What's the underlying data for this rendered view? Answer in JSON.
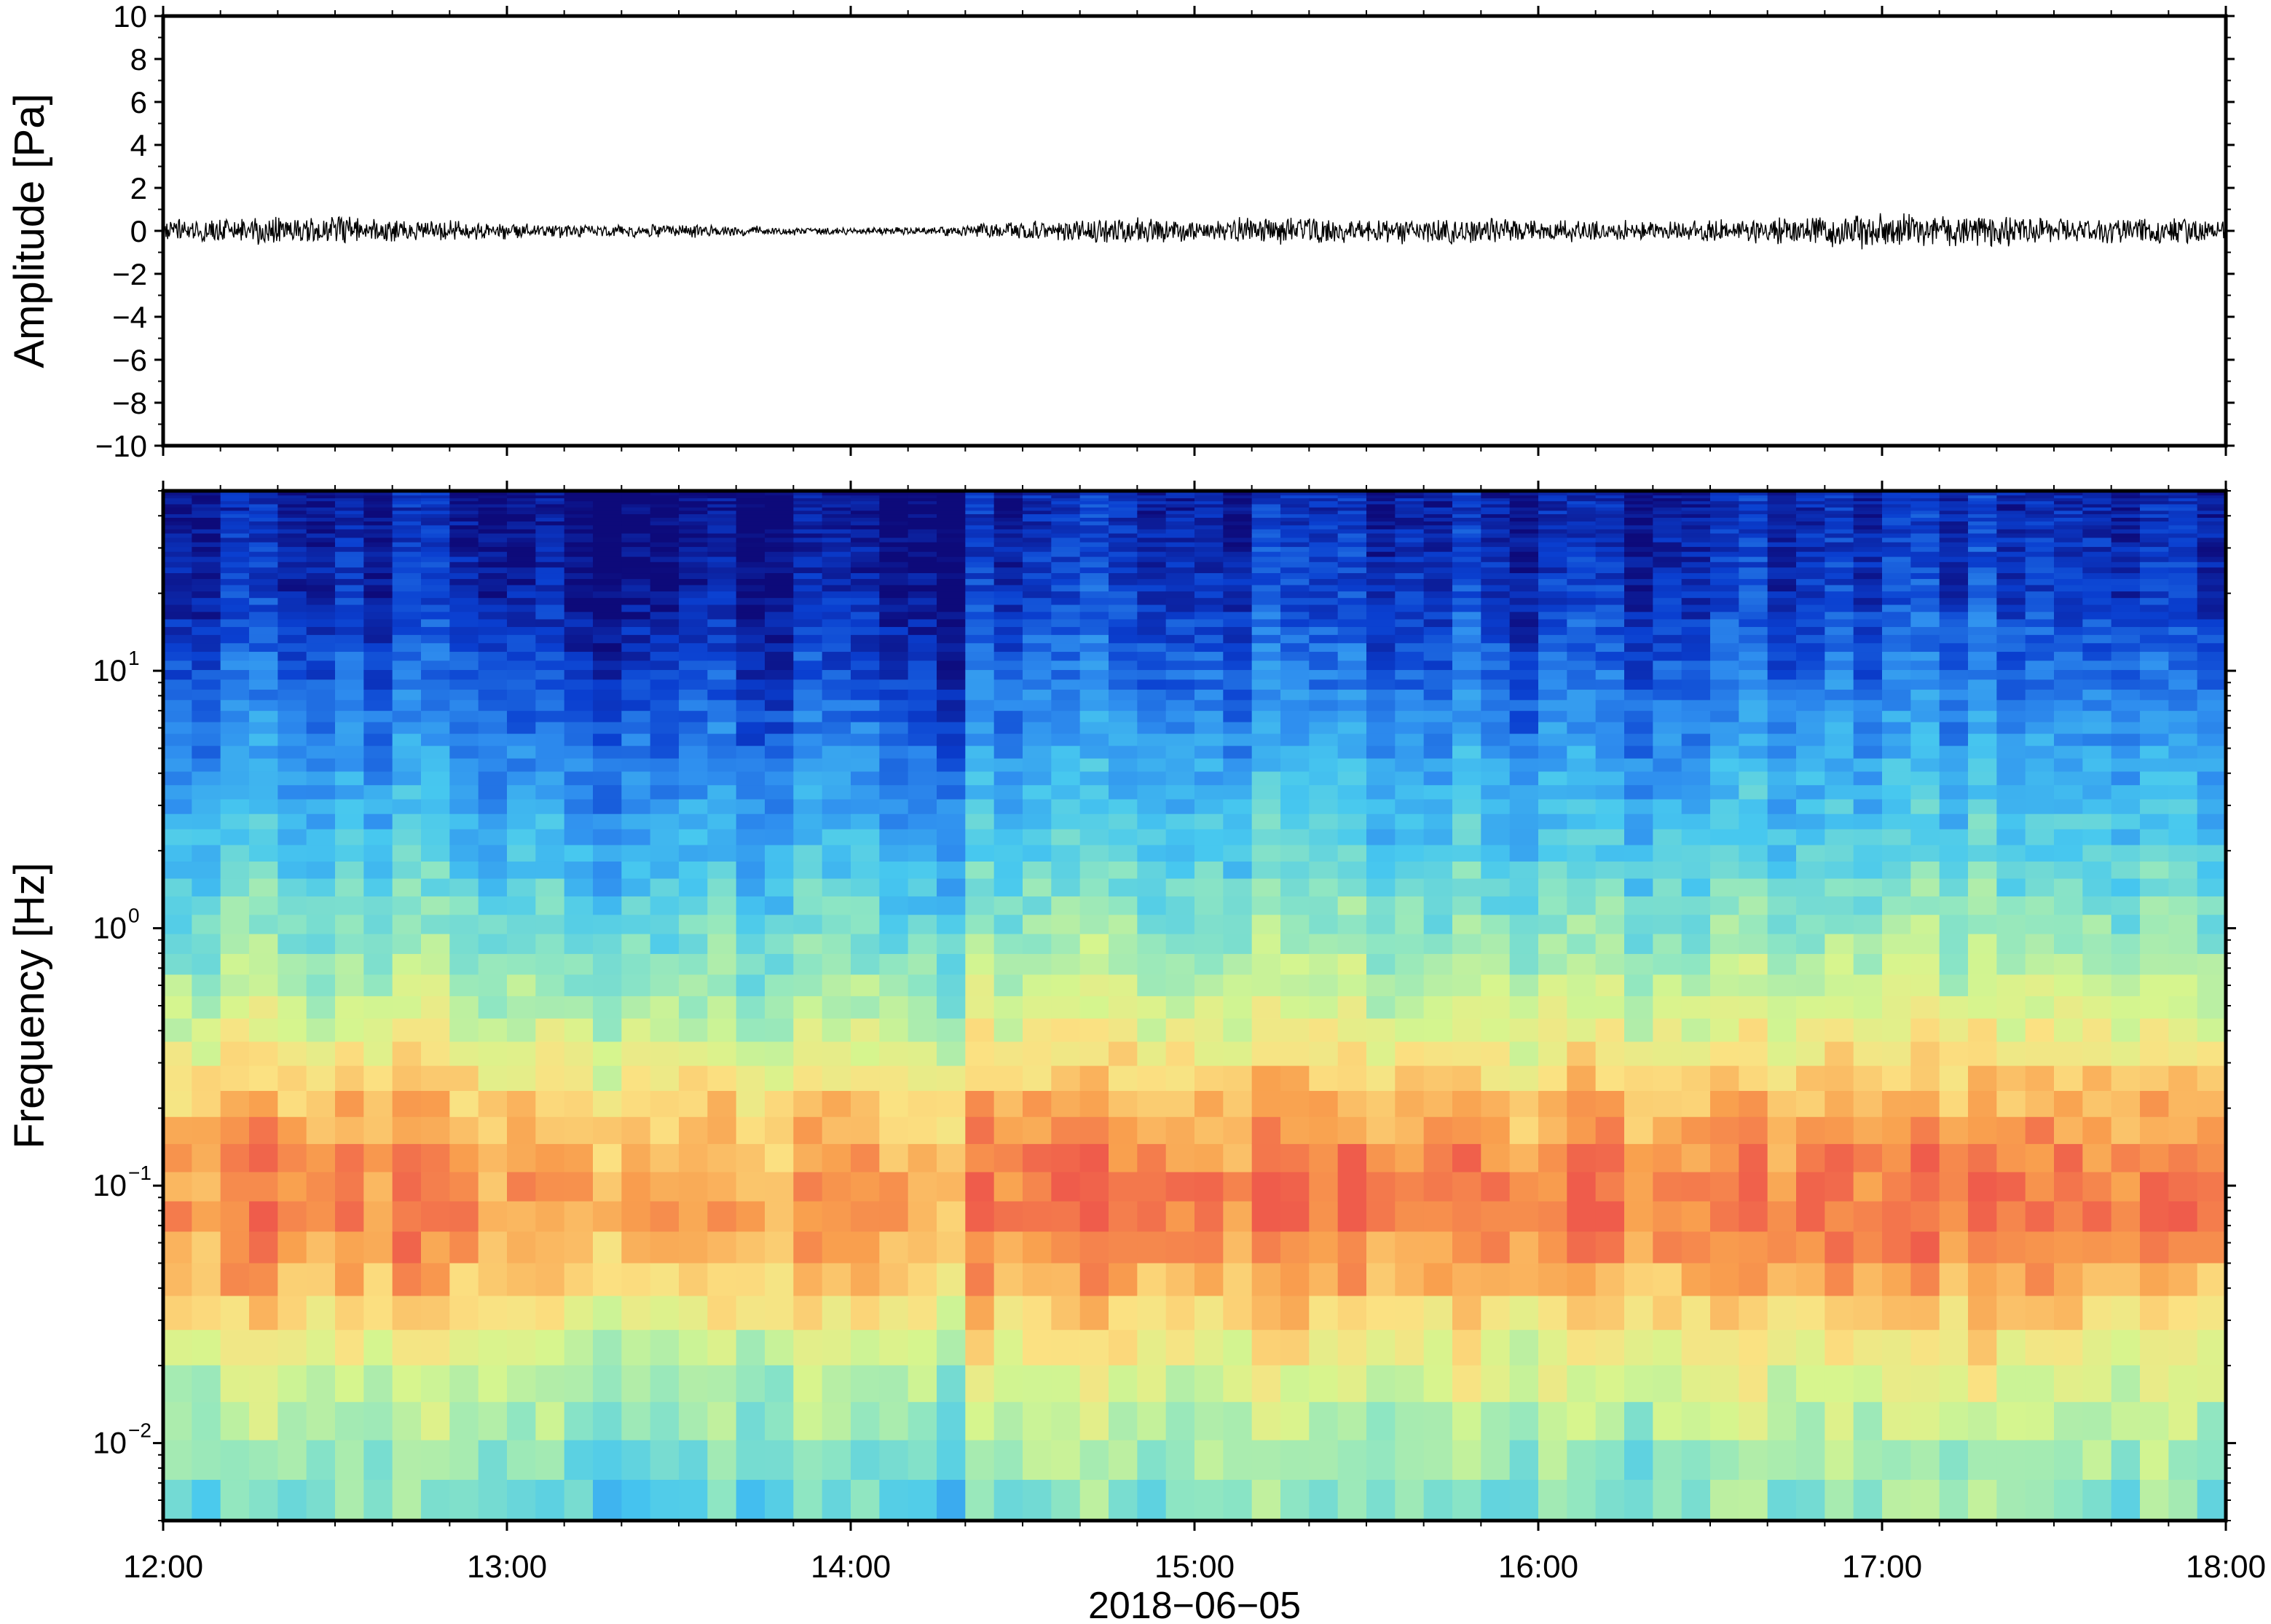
{
  "chart_data": [
    {
      "type": "line",
      "ylabel": "Amplitude [Pa]",
      "ylim": [
        -10,
        10
      ],
      "yticks": [
        10,
        8,
        6,
        4,
        2,
        0,
        -2,
        -4,
        -6,
        -8,
        -10
      ],
      "ytick_labels": [
        "10",
        "8",
        "6",
        "4",
        "2",
        "0",
        "−2",
        "−4",
        "−6",
        "−8",
        "−10"
      ],
      "xlim": [
        "12:00",
        "18:00"
      ],
      "series": [
        {
          "values_desc": "waveform",
          "t_hours": [
            12.0,
            12.25,
            12.5,
            12.75,
            13.0,
            13.25,
            13.5,
            13.75,
            14.0,
            14.25,
            14.5,
            14.75,
            15.0,
            15.25,
            15.5,
            15.75,
            16.0,
            16.25,
            16.5,
            16.75,
            17.0,
            17.25,
            17.5,
            17.75,
            18.0
          ],
          "envelope": [
            0.5,
            0.6,
            0.6,
            0.5,
            0.35,
            0.3,
            0.3,
            0.2,
            0.15,
            0.2,
            0.45,
            0.55,
            0.5,
            0.6,
            0.5,
            0.6,
            0.45,
            0.45,
            0.5,
            0.6,
            0.85,
            0.7,
            0.6,
            0.55,
            0.5
          ]
        }
      ]
    },
    {
      "type": "heatmap",
      "ylabel": "Frequency [Hz]",
      "yscale": "log",
      "ylim": [
        0.005,
        50
      ],
      "yticks": [
        0.01,
        0.1,
        1,
        10
      ],
      "ytick_labels": [
        {
          "base": "10",
          "exp": "−2"
        },
        {
          "base": "10",
          "exp": "−1"
        },
        {
          "base": "10",
          "exp": "0"
        },
        {
          "base": "10",
          "exp": "1"
        }
      ],
      "xlabel": "2018−06−05",
      "xlim": [
        "12:00",
        "18:00"
      ],
      "xticks": [
        "12:00",
        "13:00",
        "14:00",
        "15:00",
        "16:00",
        "17:00",
        "18:00"
      ],
      "colormap": "rainbow",
      "color_ramp": [
        "#0d0a7a",
        "#0a3fd0",
        "#2f8fef",
        "#47c8ef",
        "#8fe6c2",
        "#d6f58e",
        "#fbe182",
        "#f9a04e",
        "#ef5c4b"
      ],
      "intensity_profile": {
        "freq_hz": [
          0.005,
          0.008,
          0.012,
          0.02,
          0.03,
          0.05,
          0.08,
          0.12,
          0.2,
          0.3,
          0.5,
          1,
          2,
          5,
          10,
          20,
          50
        ],
        "level": [
          0.45,
          0.5,
          0.56,
          0.64,
          0.74,
          0.86,
          0.92,
          0.9,
          0.82,
          0.72,
          0.6,
          0.48,
          0.38,
          0.26,
          0.17,
          0.09,
          0.04
        ]
      }
    }
  ]
}
